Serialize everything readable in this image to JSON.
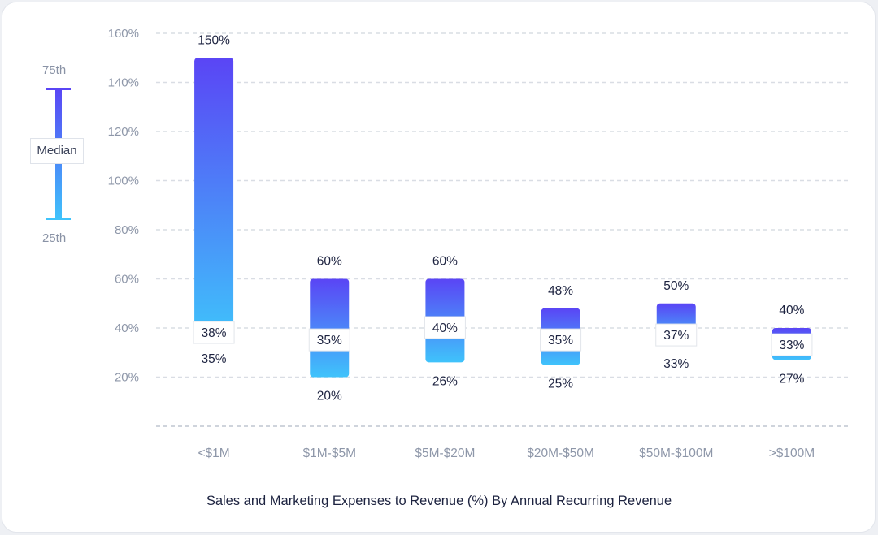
{
  "chart_data": {
    "type": "bar",
    "subtype": "range-with-median",
    "title": "Sales and Marketing Expenses to Revenue (%) By Annual Recurring Revenue",
    "categories": [
      "<$1M",
      "$1M-$5M",
      "$5M-$20M",
      "$20M-$50M",
      "$50M-$100M",
      ">$100M"
    ],
    "p75": [
      150,
      60,
      60,
      48,
      50,
      40
    ],
    "median": [
      38,
      35,
      40,
      35,
      37,
      33
    ],
    "p25": [
      35,
      20,
      26,
      25,
      33,
      27
    ],
    "p75_labels": [
      "150%",
      "60%",
      "60%",
      "48%",
      "50%",
      "40%"
    ],
    "median_labels": [
      "38%",
      "35%",
      "40%",
      "35%",
      "37%",
      "33%"
    ],
    "p25_labels": [
      "35%",
      "20%",
      "26%",
      "25%",
      "33%",
      "27%"
    ],
    "y_ticks": [
      20,
      40,
      60,
      80,
      100,
      120,
      140,
      160
    ],
    "y_tick_labels": [
      "20%",
      "40%",
      "60%",
      "80%",
      "100%",
      "120%",
      "140%",
      "160%"
    ],
    "ylim": [
      0,
      160
    ],
    "grid": true,
    "colors": {
      "top": "#5a45f5",
      "bottom": "#3fc3fb"
    },
    "legend": {
      "position": "left",
      "top_label": "75th",
      "middle_label": "Median",
      "bottom_label": "25th"
    }
  }
}
